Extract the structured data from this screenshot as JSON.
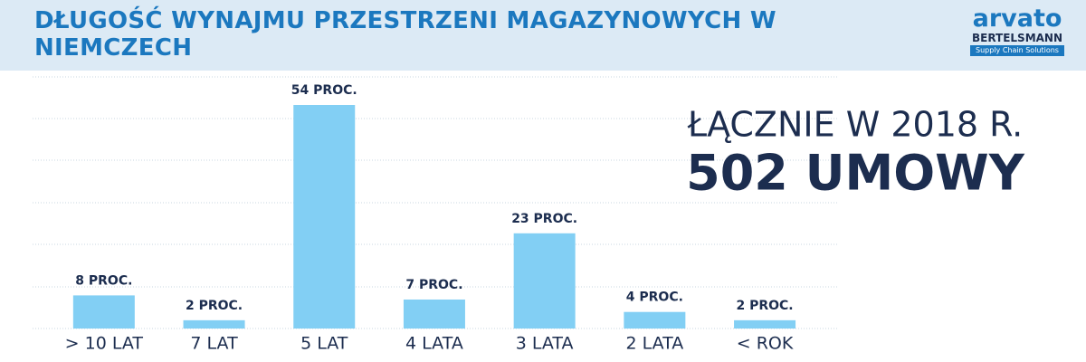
{
  "chart_data": {
    "type": "bar",
    "title": "DŁUGOŚĆ WYNAJMU PRZESTRZENI MAGAZYNOWYCH W NIEMCZECH",
    "categories": [
      "> 10 LAT",
      "7 LAT",
      "5 LAT",
      "4 LATA",
      "3 LATA",
      "2 LATA",
      "< ROK"
    ],
    "values": [
      8,
      2,
      54,
      7,
      23,
      4,
      2
    ],
    "value_labels": [
      "8 PROC.",
      "2 PROC.",
      "54 PROC.",
      "7 PROC.",
      "23 PROC.",
      "4 PROC.",
      "2 PROC."
    ],
    "color": "#82cff4",
    "annotations": [
      "ŁĄCZNIE W 2018 R.",
      "502 UMOWY"
    ]
  },
  "logo": {
    "name": "arvato",
    "brand": "BERTELSMANN",
    "tagline": "Supply Chain Solutions"
  }
}
